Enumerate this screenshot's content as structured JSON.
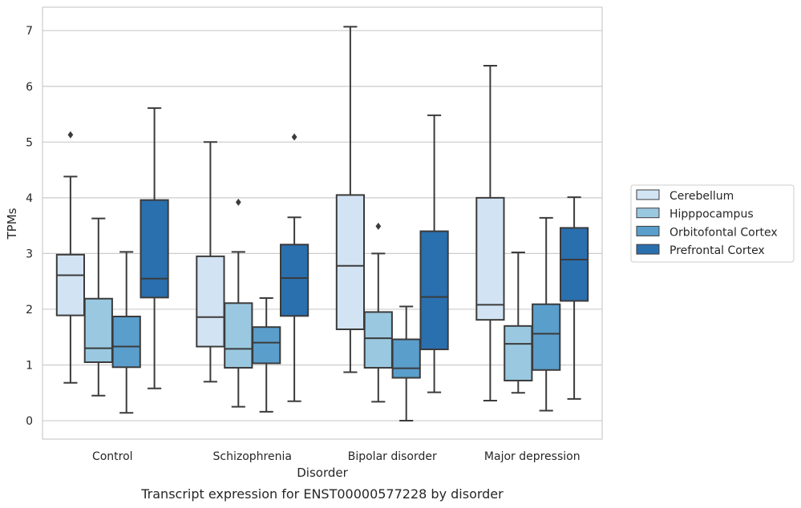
{
  "chart_data": {
    "type": "box",
    "xlabel": "Disorder",
    "ylabel": "TPMs",
    "caption": "Transcript expression for ENST00000577228 by disorder",
    "ylim": [
      -0.33,
      7.42
    ],
    "yticks": [
      0,
      1,
      2,
      3,
      4,
      5,
      6,
      7
    ],
    "grid": "horizontal",
    "legend_position": "right",
    "categories": [
      "Control",
      "Schizophrenia",
      "Bipolar disorder",
      "Major depression"
    ],
    "series": [
      {
        "name": "Cerebellum",
        "color": "#d2e3f3",
        "boxes": [
          {
            "category": "Control",
            "whisker_low": 0.68,
            "q1": 1.89,
            "median": 2.61,
            "q3": 2.98,
            "whisker_high": 4.38,
            "outliers": [
              5.13
            ]
          },
          {
            "category": "Schizophrenia",
            "whisker_low": 0.7,
            "q1": 1.33,
            "median": 1.86,
            "q3": 2.95,
            "whisker_high": 5.0,
            "outliers": []
          },
          {
            "category": "Bipolar disorder",
            "whisker_low": 0.87,
            "q1": 1.64,
            "median": 2.78,
            "q3": 4.05,
            "whisker_high": 7.07,
            "outliers": []
          },
          {
            "category": "Major depression",
            "whisker_low": 0.36,
            "q1": 1.81,
            "median": 2.08,
            "q3": 4.0,
            "whisker_high": 6.37,
            "outliers": []
          }
        ]
      },
      {
        "name": "Hipppocampus",
        "color": "#9ac8e0",
        "boxes": [
          {
            "category": "Control",
            "whisker_low": 0.45,
            "q1": 1.05,
            "median": 1.3,
            "q3": 2.19,
            "whisker_high": 3.63,
            "outliers": []
          },
          {
            "category": "Schizophrenia",
            "whisker_low": 0.25,
            "q1": 0.95,
            "median": 1.29,
            "q3": 2.11,
            "whisker_high": 3.03,
            "outliers": [
              3.92
            ]
          },
          {
            "category": "Bipolar disorder",
            "whisker_low": 0.34,
            "q1": 0.95,
            "median": 1.48,
            "q3": 1.95,
            "whisker_high": 3.0,
            "outliers": [
              3.49
            ]
          },
          {
            "category": "Major depression",
            "whisker_low": 0.5,
            "q1": 0.72,
            "median": 1.38,
            "q3": 1.7,
            "whisker_high": 3.02,
            "outliers": []
          }
        ]
      },
      {
        "name": "Orbitofontal Cortex",
        "color": "#5a9ecc",
        "boxes": [
          {
            "category": "Control",
            "whisker_low": 0.14,
            "q1": 0.96,
            "median": 1.33,
            "q3": 1.87,
            "whisker_high": 3.03,
            "outliers": []
          },
          {
            "category": "Schizophrenia",
            "whisker_low": 0.16,
            "q1": 1.03,
            "median": 1.4,
            "q3": 1.68,
            "whisker_high": 2.2,
            "outliers": []
          },
          {
            "category": "Bipolar disorder",
            "whisker_low": 0.0,
            "q1": 0.77,
            "median": 0.94,
            "q3": 1.46,
            "whisker_high": 2.05,
            "outliers": []
          },
          {
            "category": "Major depression",
            "whisker_low": 0.18,
            "q1": 0.91,
            "median": 1.56,
            "q3": 2.09,
            "whisker_high": 3.64,
            "outliers": []
          }
        ]
      },
      {
        "name": "Prefrontal Cortex",
        "color": "#2a6fae",
        "boxes": [
          {
            "category": "Control",
            "whisker_low": 0.58,
            "q1": 2.21,
            "median": 2.55,
            "q3": 3.96,
            "whisker_high": 5.61,
            "outliers": []
          },
          {
            "category": "Schizophrenia",
            "whisker_low": 0.35,
            "q1": 1.88,
            "median": 2.56,
            "q3": 3.16,
            "whisker_high": 3.65,
            "outliers": [
              5.09
            ]
          },
          {
            "category": "Bipolar disorder",
            "whisker_low": 0.51,
            "q1": 1.28,
            "median": 2.22,
            "q3": 3.4,
            "whisker_high": 5.48,
            "outliers": []
          },
          {
            "category": "Major depression",
            "whisker_low": 0.39,
            "q1": 2.15,
            "median": 2.89,
            "q3": 3.46,
            "whisker_high": 4.01,
            "outliers": []
          }
        ]
      }
    ],
    "colors": {
      "grid": "#cccccc",
      "frame": "#cccccc",
      "line": "#3b3b3b"
    }
  }
}
